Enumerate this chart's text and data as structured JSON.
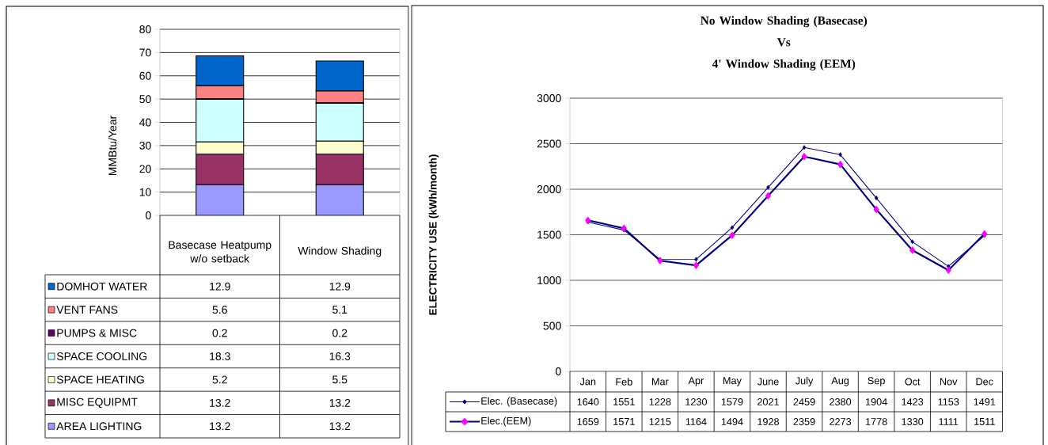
{
  "chart_data": [
    {
      "type": "bar",
      "stacked": true,
      "categories": [
        "Basecase Heatpump w/o setback",
        "Window Shading"
      ],
      "ylabel": "MMBtu/Year",
      "ylim": [
        0,
        80
      ],
      "yticks": [
        0,
        10,
        20,
        30,
        40,
        50,
        60,
        70,
        80
      ],
      "grid": "y",
      "legend": "bottom",
      "series": [
        {
          "name": "AREA LIGHTING",
          "color": "#9999ff",
          "values": [
            13.2,
            13.2
          ],
          "value_labels": [
            "13.2",
            "13.2"
          ]
        },
        {
          "name": "MISC EQUIPMT",
          "color": "#993366",
          "values": [
            13.2,
            13.2
          ],
          "value_labels": [
            "13.2",
            "13.2"
          ]
        },
        {
          "name": "SPACE HEATING",
          "color": "#ffffcc",
          "values": [
            5.2,
            5.5
          ],
          "value_labels": [
            "5.2",
            "5.5"
          ]
        },
        {
          "name": "SPACE COOLING",
          "color": "#ccffff",
          "values": [
            18.3,
            16.3
          ],
          "value_labels": [
            "18.3",
            "16.3"
          ]
        },
        {
          "name": "PUMPS & MISC",
          "color": "#660066",
          "values": [
            0.2,
            0.2
          ],
          "value_labels": [
            "0.2",
            "0.2"
          ]
        },
        {
          "name": "VENT FANS",
          "color": "#ff8080",
          "values": [
            5.6,
            5.1
          ],
          "value_labels": [
            "5.6",
            "5.1"
          ]
        },
        {
          "name": "DOMHOT WATER",
          "color": "#0066cc",
          "values": [
            12.9,
            12.9
          ],
          "value_labels": [
            "12.9",
            "12.9"
          ]
        }
      ]
    },
    {
      "type": "line",
      "title": "No Window Shading (Basecase) Vs 4' Window Shading (EEM)",
      "categories": [
        "Jan",
        "Feb",
        "Mar",
        "Apr",
        "May",
        "June",
        "July",
        "Aug",
        "Sep",
        "Oct",
        "Nov",
        "Dec"
      ],
      "ylabel": "ELECTRICITY USE (kWh/month)",
      "ylim": [
        0,
        3000
      ],
      "yticks": [
        0,
        500,
        1000,
        1500,
        2000,
        2500,
        3000
      ],
      "grid": "y",
      "legend": "bottom",
      "marker": "diamond",
      "data_labels": true,
      "series": [
        {
          "name": "Elec. (Basecase)",
          "color": "#000080",
          "values": [
            1640,
            1551,
            1228,
            1230,
            1579,
            2021,
            2459,
            2380,
            1904,
            1423,
            1153,
            1491
          ]
        },
        {
          "name": "Elec.(EEM)",
          "color": "#ff00ff",
          "values": [
            1659,
            1571,
            1215,
            1164,
            1494,
            1928,
            2359,
            2273,
            1778,
            1330,
            1111,
            1511
          ]
        }
      ]
    }
  ]
}
